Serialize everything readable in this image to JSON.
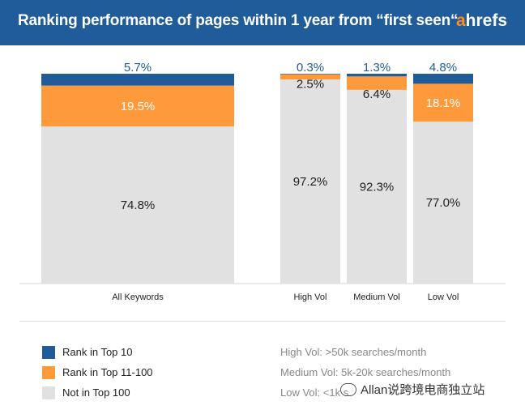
{
  "header": {
    "title": "Ranking performance of pages within 1 year from “first seen“",
    "logo_a": "a",
    "logo_rest": "hrefs"
  },
  "colors": {
    "header_bg": "#1f5c99",
    "top10": "#1f5c99",
    "top11_100": "#ff9a3c",
    "not_top100": "#e1e1e1"
  },
  "chart_data": {
    "type": "bar",
    "stacked": true,
    "normalized_percent": true,
    "categories": [
      "All Keywords",
      "High Vol",
      "Medium Vol",
      "Low Vol"
    ],
    "series": [
      {
        "name": "Rank in Top 10",
        "values": [
          5.7,
          0.3,
          1.3,
          4.8
        ],
        "labels": [
          "5.7%",
          "0.3%",
          "1.3%",
          "4.8%"
        ]
      },
      {
        "name": "Rank in Top 11-100",
        "values": [
          19.5,
          2.5,
          6.4,
          18.1
        ],
        "labels": [
          "19.5%",
          "2.5%",
          "6.4%",
          "18.1%"
        ]
      },
      {
        "name": "Not in Top 100",
        "values": [
          74.8,
          97.2,
          92.3,
          77.0
        ],
        "labels": [
          "74.8%",
          "97.2%",
          "92.3%",
          "77.0%"
        ]
      }
    ],
    "ylim": [
      0,
      100
    ],
    "grid": false,
    "legend_position": "bottom-left"
  },
  "legend": [
    {
      "label": "Rank in Top 10",
      "color": "#1f5c99"
    },
    {
      "label": "Rank in Top 11-100",
      "color": "#ff9a3c"
    },
    {
      "label": "Not in Top 100",
      "color": "#e1e1e1"
    }
  ],
  "notes": [
    "High Vol: >50k searches/month",
    "Medium Vol: 5k-20k searches/month",
    "Low Vol: <1k s"
  ],
  "watermark": "Allan说跨境电商独立站"
}
